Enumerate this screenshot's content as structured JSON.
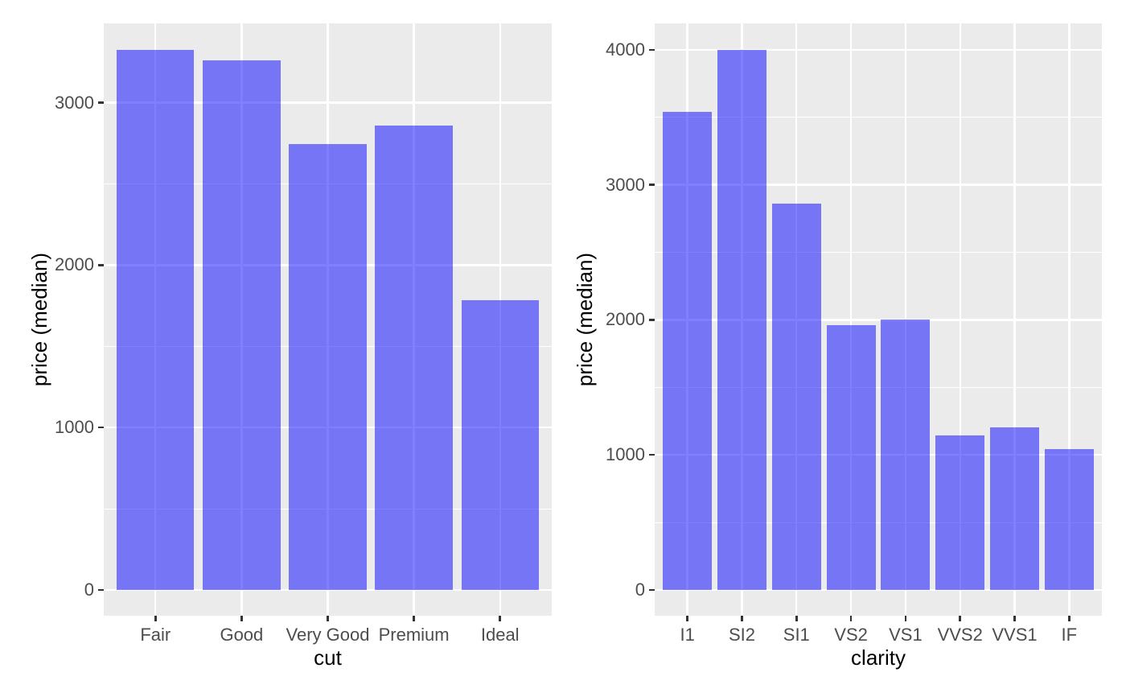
{
  "style": {
    "background": "#FFFFFF",
    "panel_background": "#EBEBEB",
    "grid_color": "#FFFFFF",
    "bar_fill": "rgba(0,0,255,0.5)",
    "bar_fill_over_panel_hex": "#7574F3",
    "tick_label_color": "#4D4D4D",
    "axis_title_color": "#000000",
    "tick_mark_color": "#333333"
  },
  "chart_data": [
    {
      "type": "bar",
      "title": "",
      "xlabel": "cut",
      "ylabel": "price (median)",
      "categories": [
        "Fair",
        "Good",
        "Very Good",
        "Premium",
        "Ideal"
      ],
      "values": [
        3325,
        3260,
        2745,
        2860,
        1785
      ],
      "y_tick_labels": [
        "0",
        "1000",
        "2000",
        "3000"
      ],
      "y_ticks": [
        0,
        1000,
        2000,
        3000
      ],
      "y_minor_gridlines": [
        500,
        1500,
        2500
      ],
      "ylim": [
        -160,
        3490
      ],
      "grid": true,
      "legend": false
    },
    {
      "type": "bar",
      "title": "",
      "xlabel": "clarity",
      "ylabel": "price (median)",
      "categories": [
        "I1",
        "SI2",
        "SI1",
        "VS2",
        "VS1",
        "VVS2",
        "VVS1",
        "IF"
      ],
      "values": [
        3540,
        4000,
        2860,
        1960,
        2000,
        1145,
        1205,
        1040
      ],
      "y_tick_labels": [
        "0",
        "1000",
        "2000",
        "3000",
        "4000"
      ],
      "y_ticks": [
        0,
        1000,
        2000,
        3000,
        4000
      ],
      "y_minor_gridlines": [
        500,
        1500,
        2500,
        3500
      ],
      "ylim": [
        -190,
        4200
      ],
      "grid": true,
      "legend": false
    }
  ]
}
